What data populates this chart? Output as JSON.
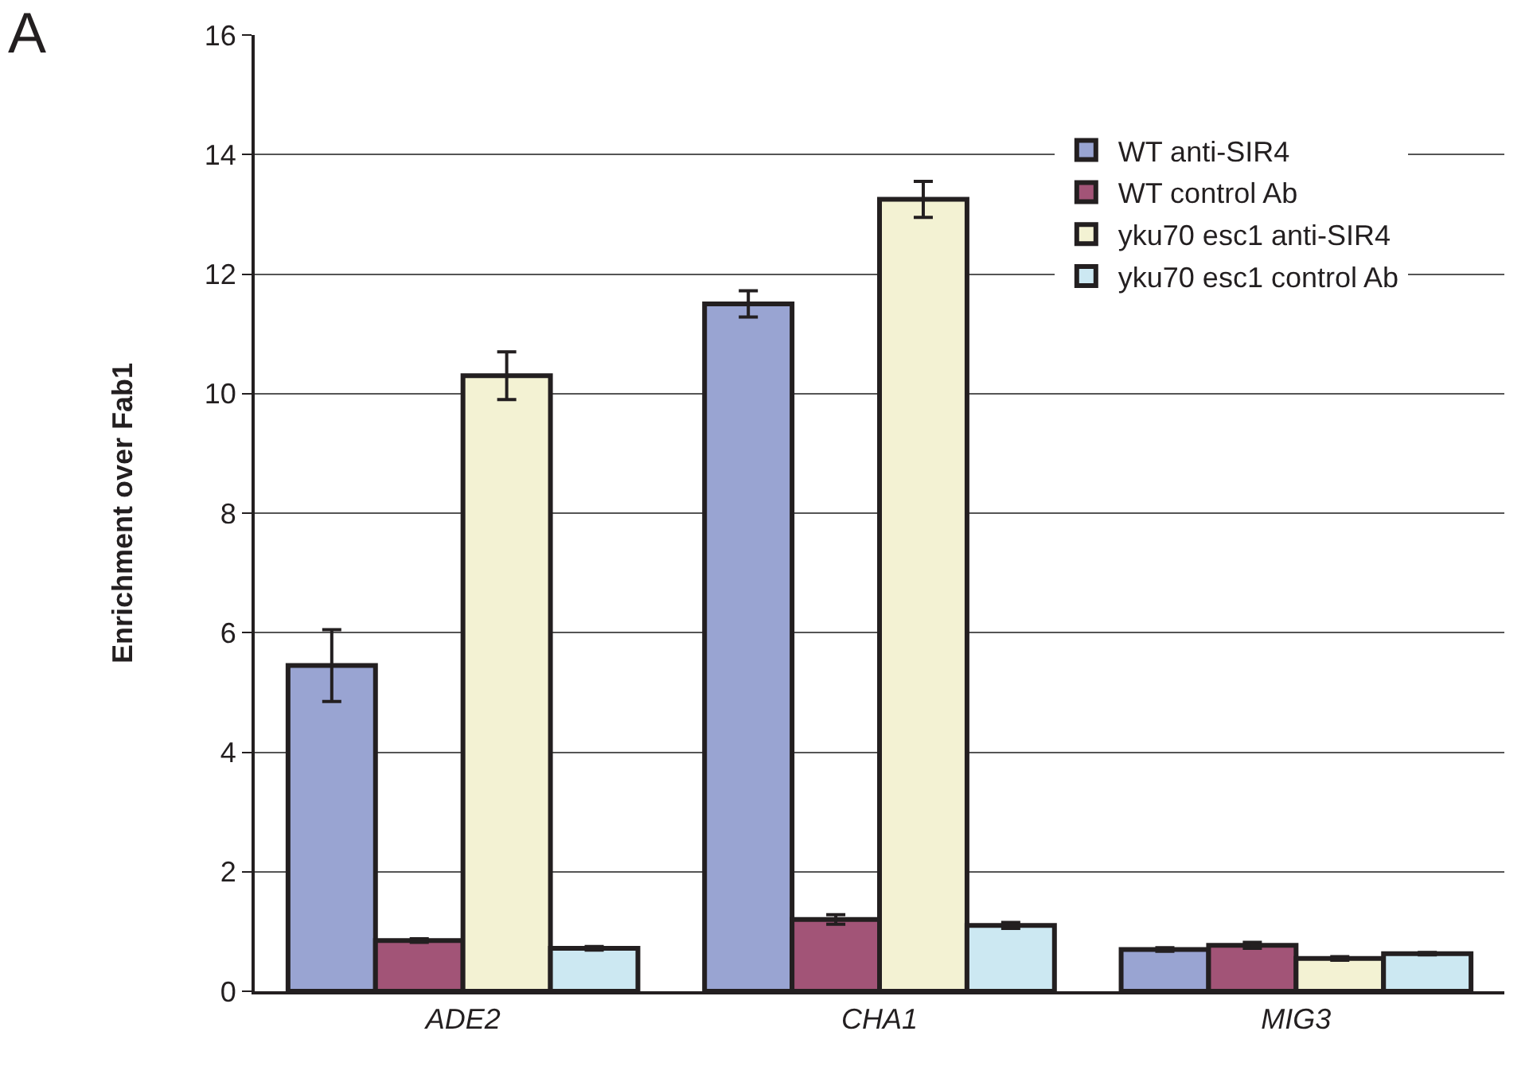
{
  "chart_data": {
    "type": "bar",
    "ylabel": "Enrichment over Fab1",
    "annotations": [
      "A"
    ],
    "categories": [
      "ADE2",
      "CHA1",
      "MIG3"
    ],
    "series": [
      {
        "name": "WT anti-SIR4",
        "color": "#99a4d2",
        "values": [
          5.45,
          11.5,
          0.7
        ],
        "errors": [
          0.6,
          0.22,
          0.03
        ]
      },
      {
        "name": "WT control Ab",
        "color": "#a25477",
        "values": [
          0.85,
          1.2,
          0.77
        ],
        "errors": [
          0.03,
          0.08,
          0.05
        ]
      },
      {
        "name": "yku70 esc1 anti-SIR4",
        "color": "#f3f2d3",
        "values": [
          10.3,
          13.25,
          0.55
        ],
        "errors": [
          0.4,
          0.3,
          0.03
        ]
      },
      {
        "name": "yku70 esc1 control Ab",
        "color": "#cce8f2",
        "values": [
          0.72,
          1.1,
          0.63
        ],
        "errors": [
          0.03,
          0.05,
          0.02
        ]
      }
    ],
    "ylim": [
      0,
      16
    ],
    "yticks": [
      0,
      2,
      4,
      6,
      8,
      10,
      12,
      14,
      16
    ],
    "grid": "y",
    "legend": "top right"
  }
}
